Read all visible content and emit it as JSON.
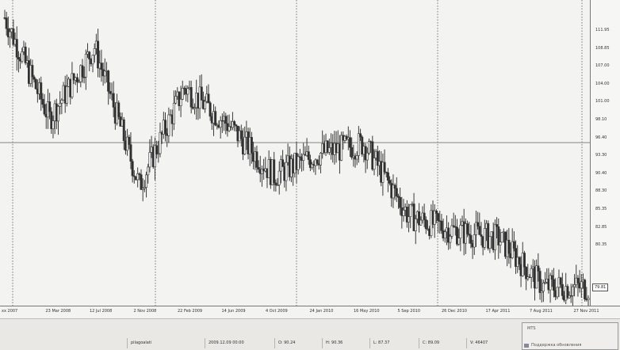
{
  "price_axis": {
    "labels": [
      "111.95",
      "108.85",
      "107.00",
      "104.00",
      "101.00",
      "98.10",
      "96.40",
      "93.30",
      "90.40",
      "88.30",
      "85.35",
      "82.85",
      "80.35",
      "79.81"
    ],
    "current": "79.81"
  },
  "time_axis": {
    "labels": [
      "xx 2007",
      "23 Mar 2008",
      "12 Jul 2008",
      "2 Nov 2008",
      "22 Feb 2009",
      "14 Jun 2009",
      "4 Oct 2009",
      "24 Jan 2010",
      "16 May 2010",
      "5 Sep 2010",
      "26 Dec 2010",
      "17 Apr 2011",
      "7 Aug 2011",
      "27 Nov 2011"
    ]
  },
  "status_bar": {
    "profile": "pilagoalati",
    "datetime": "2009.12.09 00:00",
    "open": "O: 90.24",
    "high": "H: 90.36",
    "low": "L: 87.37",
    "close": "C: 89.09",
    "volume": "V: 46407",
    "mts_title": "MTS",
    "mts_sub": "Поддержка обновления"
  },
  "chart_data": {
    "type": "candlestick",
    "x": [
      "2007",
      "23 Mar 2008",
      "12 Jul 2008",
      "2 Nov 2008",
      "22 Feb 2009",
      "14 Jun 2009",
      "4 Oct 2009",
      "24 Jan 2010",
      "16 May 2010",
      "5 Sep 2010",
      "26 Dec 2010",
      "17 Apr 2011",
      "7 Aug 2011",
      "27 Nov 2011"
    ],
    "close_trend": [
      111.5,
      99.8,
      108.1,
      92.0,
      103.4,
      99.0,
      93.2,
      95.7,
      96.9,
      88.5,
      86.8,
      85.9,
      80.3,
      80.2
    ],
    "ylim": [
      79,
      113
    ],
    "horizontal_line": 97.0,
    "period_separators": 4,
    "grid": false
  }
}
